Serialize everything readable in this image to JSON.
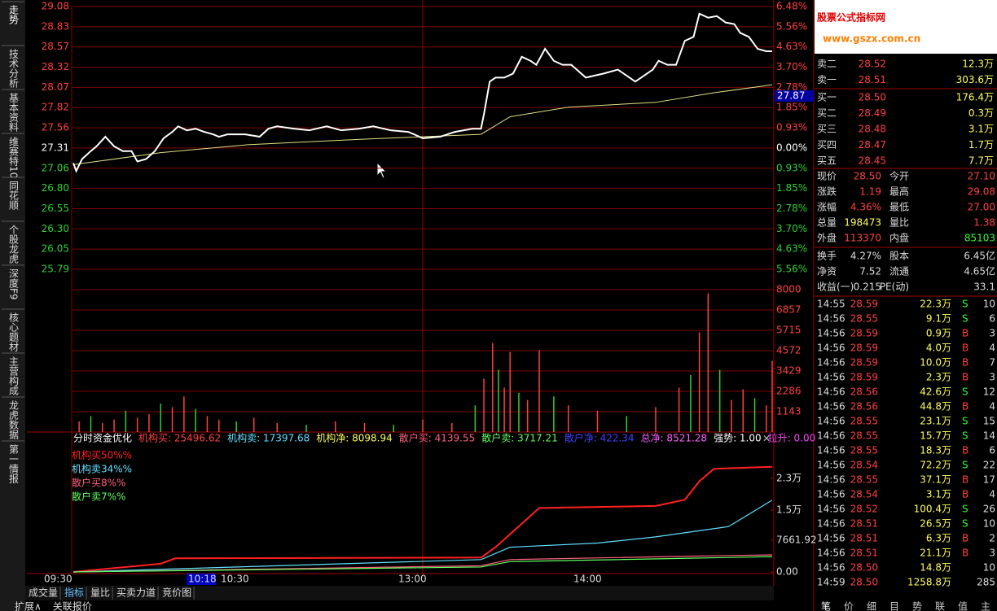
{
  "sidebar_tabs": [
    "走势",
    "技术分析",
    "基本资料",
    "维赛特10",
    "同花顺",
    "个股龙虎",
    "深度F9",
    "核心题材",
    "主营构成",
    "龙虎数据",
    "第一情报"
  ],
  "price_chart": {
    "price_ticks": [
      "29.08",
      "28.83",
      "28.57",
      "28.32",
      "28.07",
      "27.82",
      "27.56",
      "27.31",
      "27.06",
      "26.80",
      "26.55",
      "26.30",
      "26.05",
      "25.79"
    ],
    "pct_ticks": [
      "6.48%",
      "5.56%",
      "4.63%",
      "3.70%",
      "2.78%",
      "1.85%",
      "0.93%",
      "0.00%",
      "0.93%",
      "1.85%",
      "2.78%",
      "3.70%",
      "4.63%",
      "5.56%"
    ],
    "current_tag": "27.87",
    "minutes": [
      0,
      1,
      3,
      6,
      8,
      11,
      14,
      17,
      20,
      22,
      25,
      28,
      31,
      34,
      36,
      39,
      42,
      45,
      48,
      50,
      53,
      59,
      64,
      67,
      70,
      76,
      81,
      87,
      92,
      98,
      103,
      109,
      115,
      117,
      120,
      126,
      131,
      137,
      140,
      141,
      143,
      145,
      148,
      151,
      154,
      157,
      159,
      162,
      165,
      168,
      171,
      176,
      182,
      187,
      193,
      199,
      201,
      204,
      207,
      210,
      213,
      215,
      218,
      221,
      224,
      227,
      229,
      232,
      235,
      238,
      240
    ],
    "price": [
      27.12,
      27.02,
      27.17,
      27.27,
      27.33,
      27.45,
      27.33,
      27.27,
      27.27,
      27.14,
      27.17,
      27.27,
      27.43,
      27.51,
      27.58,
      27.53,
      27.55,
      27.51,
      27.48,
      27.45,
      27.48,
      27.48,
      27.45,
      27.55,
      27.58,
      27.55,
      27.53,
      27.58,
      27.53,
      27.55,
      27.58,
      27.53,
      27.51,
      27.48,
      27.43,
      27.45,
      27.51,
      27.55,
      27.55,
      27.73,
      28.14,
      28.19,
      28.19,
      28.24,
      28.45,
      28.4,
      28.35,
      28.55,
      28.4,
      28.35,
      28.35,
      28.19,
      28.24,
      28.29,
      28.14,
      28.29,
      28.4,
      28.35,
      28.35,
      28.65,
      28.7,
      28.99,
      28.94,
      28.96,
      28.88,
      28.86,
      28.75,
      28.7,
      28.55,
      28.52,
      28.52
    ],
    "avg_minutes": [
      0,
      30,
      60,
      100,
      140,
      150,
      170,
      200,
      220,
      240
    ],
    "avg": [
      27.1,
      27.25,
      27.35,
      27.42,
      27.48,
      27.7,
      27.82,
      27.88,
      28.0,
      28.1
    ]
  },
  "volume_chart": {
    "ticks": [
      "8000",
      "6857",
      "5715",
      "4572",
      "3429",
      "2286",
      "1143"
    ],
    "minutes": [
      2,
      6,
      10,
      14,
      18,
      22,
      26,
      30,
      34,
      38,
      42,
      46,
      50,
      56,
      62,
      70,
      80,
      90,
      100,
      110,
      120,
      130,
      138,
      141,
      144,
      146,
      148,
      150,
      153,
      156,
      160,
      165,
      170,
      180,
      190,
      200,
      208,
      212,
      215,
      218,
      222,
      226,
      230,
      234,
      238,
      240
    ],
    "values": [
      600,
      900,
      500,
      700,
      1200,
      800,
      1000,
      1600,
      1400,
      2000,
      1300,
      900,
      700,
      600,
      800,
      500,
      400,
      600,
      500,
      400,
      700,
      500,
      1500,
      3000,
      5000,
      3500,
      2500,
      4500,
      2200,
      1800,
      4600,
      2000,
      1500,
      1200,
      900,
      1400,
      2500,
      3200,
      5600,
      7800,
      3500,
      1800,
      2400,
      1900,
      1500,
      4000
    ]
  },
  "indicator": {
    "header": [
      {
        "text": "分时资金优化",
        "color": "#ffffff"
      },
      {
        "text": "机构买: 25496.62",
        "color": "#ff4040"
      },
      {
        "text": "机构卖: 17397.68",
        "color": "#60e0ff"
      },
      {
        "text": "机构净: 8098.94",
        "color": "#ffff60"
      },
      {
        "text": "散户买: 4139.55",
        "color": "#ff6080"
      },
      {
        "text": "散户卖: 3717.21",
        "color": "#60ff60"
      },
      {
        "text": "散户净: 422.34",
        "color": "#4040ff"
      },
      {
        "text": "总净: 8521.28",
        "color": "#ff60ff"
      },
      {
        "text": "强势: 1.00",
        "color": "#ffffff"
      },
      {
        "text": "拉升: 0.00",
        "color": "#ff40ff"
      }
    ],
    "ticks": [
      "2.3万",
      "1.5万",
      "7661.92",
      "0.00"
    ],
    "series": [
      {
        "name": "机构买50%%",
        "color": "#ff2020",
        "minutes": [
          0,
          30,
          35,
          140,
          145,
          160,
          200,
          210,
          215,
          220,
          240
        ],
        "values": [
          0,
          2000,
          3300,
          3500,
          6000,
          15500,
          16000,
          17500,
          22000,
          25000,
          25496
        ]
      },
      {
        "name": "机构卖34%%",
        "color": "#60e0ff",
        "minutes": [
          0,
          140,
          150,
          180,
          200,
          225,
          240
        ],
        "values": [
          0,
          3000,
          6000,
          7000,
          8500,
          11000,
          17397
        ]
      },
      {
        "name": "散户买8%%",
        "color": "#ff6080",
        "minutes": [
          0,
          140,
          150,
          210,
          240
        ],
        "values": [
          0,
          1500,
          3000,
          3800,
          4139
        ]
      },
      {
        "name": "散户卖7%%",
        "color": "#60ff60",
        "minutes": [
          0,
          140,
          150,
          210,
          240
        ],
        "values": [
          0,
          1200,
          2500,
          3300,
          3717
        ]
      }
    ]
  },
  "time_axis": [
    "09:30",
    "10:18",
    "10:30",
    "13:00",
    "14:00"
  ],
  "bottom_tabs": [
    "成交量",
    "指标",
    "量比",
    "买卖力道",
    "竞价图"
  ],
  "footer_tabs": [
    "扩展∧",
    "关联报价"
  ],
  "logo": {
    "title": "股票公式指标网",
    "url": "www.gszx.com.cn"
  },
  "order_book": [
    [
      "卖二",
      "28.52",
      "12.3万"
    ],
    [
      "卖一",
      "28.51",
      "303.6万"
    ],
    [
      "买一",
      "28.50",
      "176.4万"
    ],
    [
      "买二",
      "28.49",
      "0.3万"
    ],
    [
      "买三",
      "28.48",
      "3.1万"
    ],
    [
      "买四",
      "28.47",
      "1.7万"
    ],
    [
      "买五",
      "28.45",
      "7.7万"
    ]
  ],
  "stats": [
    [
      "现价",
      "28.50",
      "今开",
      "27.10"
    ],
    [
      "涨跌",
      "1.19",
      "最高",
      "29.08"
    ],
    [
      "涨幅",
      "4.36%",
      "最低",
      "27.00"
    ],
    [
      "总量",
      "198473",
      "量比",
      "1.38"
    ],
    [
      "外盘",
      "113370",
      "内盘",
      "85103"
    ],
    [
      "换手",
      "4.27%",
      "股本",
      "6.45亿"
    ],
    [
      "净资",
      "7.52",
      "流通",
      "4.65亿"
    ],
    [
      "收益(一)",
      "0.215",
      "PE(动)",
      "33.1"
    ]
  ],
  "trades": [
    [
      "14:55",
      "28.59",
      "22.3万",
      "S",
      "10"
    ],
    [
      "14:56",
      "28.55",
      "9.1万",
      "S",
      "6"
    ],
    [
      "14:56",
      "28.59",
      "0.9万",
      "B",
      "3"
    ],
    [
      "14:56",
      "28.59",
      "4.0万",
      "B",
      "4"
    ],
    [
      "14:56",
      "28.59",
      "10.0万",
      "B",
      "7"
    ],
    [
      "14:56",
      "28.59",
      "2.3万",
      "B",
      "3"
    ],
    [
      "14:56",
      "28.56",
      "42.6万",
      "S",
      "12"
    ],
    [
      "14:56",
      "28.56",
      "44.8万",
      "B",
      "4"
    ],
    [
      "14:56",
      "28.55",
      "23.1万",
      "S",
      "15"
    ],
    [
      "14:56",
      "28.55",
      "15.7万",
      "S",
      "14"
    ],
    [
      "14:56",
      "28.55",
      "18.3万",
      "B",
      "6"
    ],
    [
      "14:56",
      "28.54",
      "72.2万",
      "S",
      "22"
    ],
    [
      "14:56",
      "28.55",
      "37.1万",
      "B",
      "17"
    ],
    [
      "14:56",
      "28.54",
      "3.1万",
      "B",
      "4"
    ],
    [
      "14:56",
      "28.52",
      "100.4万",
      "S",
      "26"
    ],
    [
      "14:56",
      "28.51",
      "26.5万",
      "S",
      "10"
    ],
    [
      "14:56",
      "28.51",
      "6.3万",
      "B",
      "2"
    ],
    [
      "14:56",
      "28.51",
      "21.1万",
      "B",
      "3"
    ],
    [
      "14:56",
      "28.50",
      "14.8万",
      null,
      "10"
    ],
    [
      "14:59",
      "28.50",
      "1258.8万",
      null,
      "285"
    ]
  ],
  "right_tabs": [
    "笔",
    "价",
    "细",
    "目",
    "势",
    "联",
    "值",
    "主"
  ]
}
